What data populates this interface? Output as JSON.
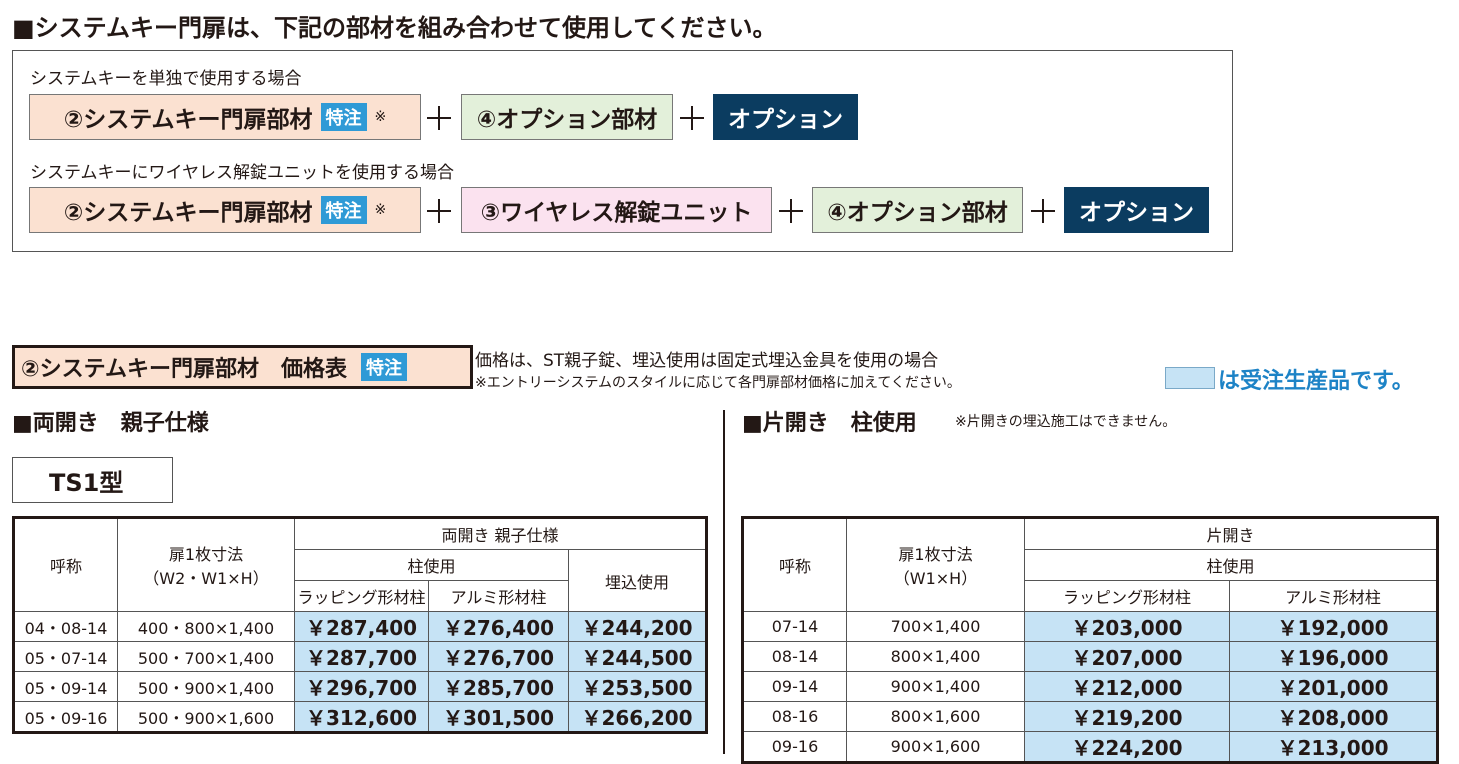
{
  "header": {
    "title": "■システムキー門扉は、下記の部材を組み合わせて使用してください。"
  },
  "combinations": [
    {
      "caption": "システムキーを単独で使用する場合",
      "items": [
        {
          "label": "②システムキー門扉部材",
          "badge": "特注",
          "mark": "※"
        },
        {
          "label": "④オプション部材"
        },
        {
          "label": "オプション"
        }
      ]
    },
    {
      "caption": "システムキーにワイヤレス解錠ユニットを使用する場合",
      "items": [
        {
          "label": "②システムキー門扉部材",
          "badge": "特注",
          "mark": "※"
        },
        {
          "label": "③ワイヤレス解錠ユニット"
        },
        {
          "label": "④オプション部材"
        },
        {
          "label": "オプション"
        }
      ]
    }
  ],
  "price_section": {
    "title": "②システムキー門扉部材　価格表",
    "badge": "特注",
    "notes": [
      "価格は、ST親子錠、埋込使用は固定式埋込金具を使用の場合",
      "※エントリーシステムのスタイルに応じて各門扉部材価格に加えてください。"
    ],
    "legend": "は受注生産品です。"
  },
  "double_swing": {
    "heading": "■両開き　親子仕様",
    "model": "TS1型",
    "table": {
      "headers": {
        "name": "呼称",
        "size": "扉1枚寸法",
        "size_unit": "（W2・W1×H）",
        "group": "両開き 親子仕様",
        "post": "柱使用",
        "embedded": "埋込使用",
        "wrapping": "ラッピング形材柱",
        "aluminum": "アルミ形材柱"
      },
      "rows": [
        [
          "04・08-14",
          "400・800×1,400",
          "￥287,400",
          "￥276,400",
          "￥244,200"
        ],
        [
          "05・07-14",
          "500・700×1,400",
          "￥287,700",
          "￥276,700",
          "￥244,500"
        ],
        [
          "05・09-14",
          "500・900×1,400",
          "￥296,700",
          "￥285,700",
          "￥253,500"
        ],
        [
          "05・09-16",
          "500・900×1,600",
          "￥312,600",
          "￥301,500",
          "￥266,200"
        ]
      ]
    }
  },
  "single_swing": {
    "heading": "■片開き　柱使用",
    "note": "※片開きの埋込施工はできません。",
    "table": {
      "headers": {
        "name": "呼称",
        "size": "扉1枚寸法",
        "size_unit": "（W1×H）",
        "group": "片開き",
        "post": "柱使用",
        "wrapping": "ラッピング形材柱",
        "aluminum": "アルミ形材柱"
      },
      "rows": [
        [
          "07-14",
          "700×1,400",
          "￥203,000",
          "￥192,000"
        ],
        [
          "08-14",
          "800×1,400",
          "￥207,000",
          "￥196,000"
        ],
        [
          "09-14",
          "900×1,400",
          "￥212,000",
          "￥201,000"
        ],
        [
          "08-16",
          "800×1,600",
          "￥219,200",
          "￥208,000"
        ],
        [
          "09-16",
          "900×1,600",
          "￥224,200",
          "￥213,000"
        ]
      ]
    }
  }
}
